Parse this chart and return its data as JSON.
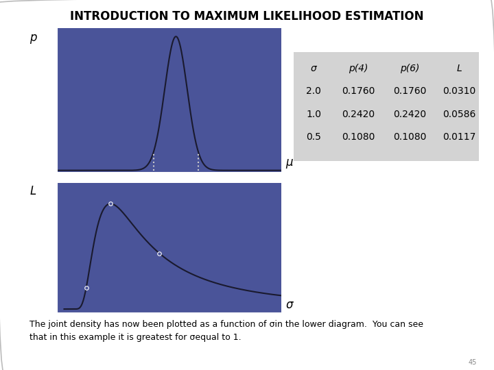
{
  "title": "INTRODUCTION TO MAXIMUM LIKELIHOOD ESTIMATION",
  "bg_color": "#4a5499",
  "outer_bg": "#ffffff",
  "upper_ylabel": "p",
  "upper_xlabel": "μ",
  "lower_ylabel": "L",
  "lower_xlabel": "σ",
  "upper_xlim": [
    -0.3,
    9.7
  ],
  "upper_ylim": [
    -0.01,
    0.85
  ],
  "upper_xticks": [
    0,
    1,
    2,
    3,
    4,
    5,
    6,
    7,
    8,
    9
  ],
  "upper_yticks": [
    0.0,
    0.2,
    0.4,
    0.6,
    0.8
  ],
  "lower_xlim": [
    -0.1,
    4.5
  ],
  "lower_ylim": [
    -0.002,
    0.07
  ],
  "lower_xticks": [
    0,
    1,
    2,
    3,
    4
  ],
  "lower_yticks": [
    0,
    0.02,
    0.04,
    0.06
  ],
  "mu_true": 5.0,
  "sigma_upper": 0.5,
  "obs1": 4,
  "obs2": 6,
  "sigma_markers": [
    0.5,
    1.0,
    2.0
  ],
  "table_header": [
    "σ",
    "p(4)",
    "p(6)",
    "L"
  ],
  "table_rows": [
    [
      "2.0",
      "0.1760",
      "0.1760",
      "0.0310"
    ],
    [
      "1.0",
      "0.2420",
      "0.2420",
      "0.0586"
    ],
    [
      "0.5",
      "0.1080",
      "0.1080",
      "0.0117"
    ]
  ],
  "table_bg": "#d3d3d3",
  "footer_text1": "The joint density has now been plotted as a function of σin the lower diagram.  You can see",
  "footer_text2": "that in this example it is greatest for σequal to 1.",
  "page_num": "45",
  "title_fontsize": 12,
  "axis_label_fontsize": 11,
  "tick_fontsize": 9,
  "table_fontsize": 10,
  "footer_fontsize": 9,
  "tick_color": "white",
  "spine_color": "white"
}
